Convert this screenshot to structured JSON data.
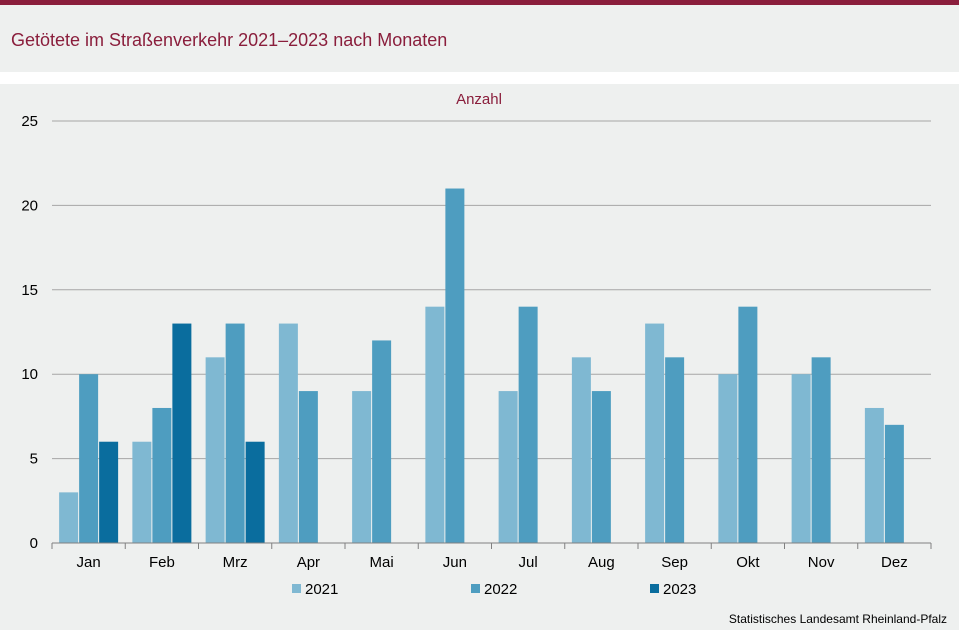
{
  "header": {
    "title": "Getötete im Straßenverkehr 2021–2023 nach Monaten"
  },
  "source": "Statistisches Landesamt  Rheinland-Pfalz",
  "colors": {
    "brand": "#8a1e3c",
    "series": [
      "#7fb8d2",
      "#4e9dc0",
      "#0a6d9e"
    ]
  },
  "chart_data": {
    "type": "bar",
    "unit_label": "Anzahl",
    "categories": [
      "Jan",
      "Feb",
      "Mrz",
      "Apr",
      "Mai",
      "Jun",
      "Jul",
      "Aug",
      "Sep",
      "Okt",
      "Nov",
      "Dez"
    ],
    "series": [
      {
        "name": "2021",
        "values": [
          3,
          6,
          11,
          13,
          9,
          14,
          9,
          11,
          13,
          10,
          10,
          8
        ]
      },
      {
        "name": "2022",
        "values": [
          10,
          8,
          13,
          9,
          12,
          21,
          14,
          9,
          11,
          14,
          11,
          7
        ]
      },
      {
        "name": "2023",
        "values": [
          6,
          13,
          6,
          null,
          null,
          null,
          null,
          null,
          null,
          null,
          null,
          null
        ]
      }
    ],
    "ylim": [
      0,
      25
    ],
    "yticks": [
      0,
      5,
      10,
      15,
      20,
      25
    ],
    "grid": true,
    "legend_position": "bottom"
  }
}
